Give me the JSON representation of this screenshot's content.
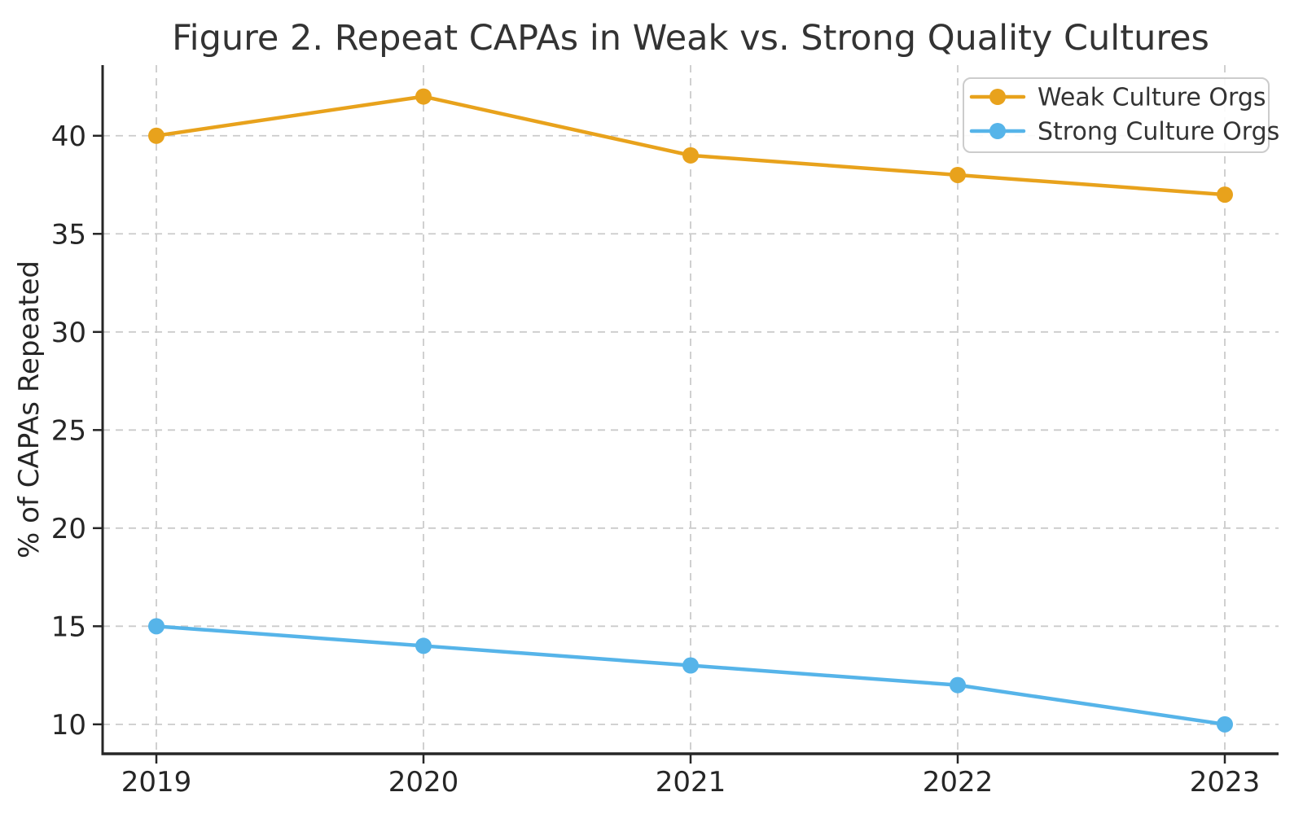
{
  "chart_data": {
    "type": "line",
    "title": "Figure 2. Repeat CAPAs in Weak vs. Strong Quality Cultures",
    "xlabel": "",
    "ylabel": "% of CAPAs Repeated",
    "x": [
      "2019",
      "2020",
      "2021",
      "2022",
      "2023"
    ],
    "series": [
      {
        "name": "Weak Culture Orgs",
        "values": [
          40,
          42,
          39,
          38,
          37
        ],
        "color": "#E8A21C"
      },
      {
        "name": "Strong Culture Orgs",
        "values": [
          15,
          14,
          13,
          12,
          10
        ],
        "color": "#56B4E9"
      }
    ],
    "yticks": [
      10,
      15,
      20,
      25,
      30,
      35,
      40
    ],
    "ylim": [
      8.5,
      43.6
    ],
    "grid": true,
    "grid_axis": "both",
    "grid_style": "dashed",
    "legend_position": "upper right",
    "marker": "circle"
  },
  "colors": {
    "background": "#FFFFFF",
    "grid": "#CBCBCB",
    "spine": "#262626",
    "tick": "#262626",
    "title_text": "#333333",
    "legend_border": "#CCCCCC",
    "legend_fill": "#FFFFFF"
  }
}
